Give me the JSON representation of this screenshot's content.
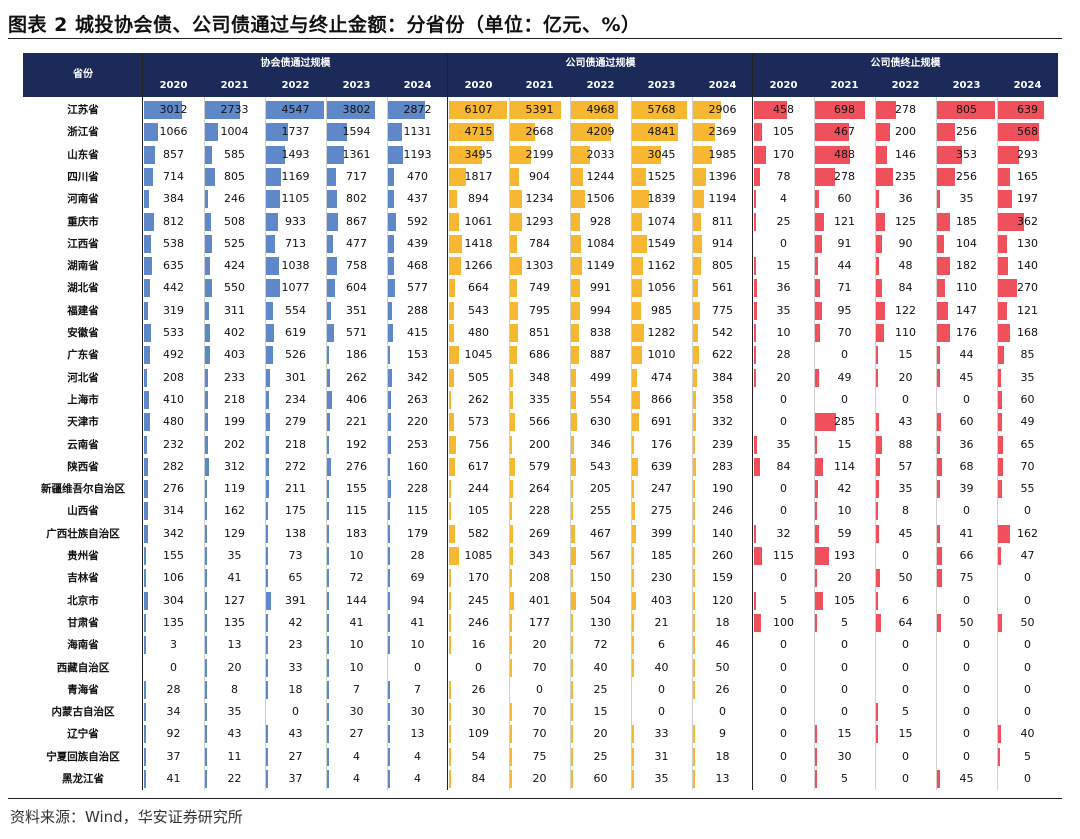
{
  "title": "图表 2  城投协会债、公司债通过与终止金额：分省份（单位：亿元、%）",
  "source": "资料来源：Wind，华安证券研究所",
  "colors": {
    "header_bg": "#1b2a58",
    "blue": "#5e88c7",
    "orange": "#f7b731",
    "red": "#f0505c"
  },
  "chart_data": {
    "type": "table",
    "row_header": "省份",
    "groups": [
      {
        "name": "协会债通过规模",
        "color": "blue",
        "max": 4547
      },
      {
        "name": "公司债通过规模",
        "color": "orange",
        "max": 6107
      },
      {
        "name": "公司债终止规模",
        "color": "red",
        "max": 805
      }
    ],
    "years": [
      "2020",
      "2021",
      "2022",
      "2023",
      "2024"
    ],
    "rows": [
      {
        "province": "江苏省",
        "values": [
          [
            3012,
            2733,
            4547,
            3802,
            2872
          ],
          [
            6107,
            5391,
            4968,
            5768,
            2906
          ],
          [
            458,
            698,
            278,
            805,
            639
          ]
        ]
      },
      {
        "province": "浙江省",
        "values": [
          [
            1066,
            1004,
            1737,
            1594,
            1131
          ],
          [
            4715,
            2668,
            4209,
            4841,
            2369
          ],
          [
            105,
            467,
            200,
            256,
            568
          ]
        ]
      },
      {
        "province": "山东省",
        "values": [
          [
            857,
            585,
            1493,
            1361,
            1193
          ],
          [
            3495,
            2199,
            2033,
            3045,
            1985
          ],
          [
            170,
            488,
            146,
            353,
            293
          ]
        ]
      },
      {
        "province": "四川省",
        "values": [
          [
            714,
            805,
            1169,
            717,
            470
          ],
          [
            1817,
            904,
            1244,
            1525,
            1396
          ],
          [
            78,
            278,
            235,
            256,
            165
          ]
        ]
      },
      {
        "province": "河南省",
        "values": [
          [
            384,
            246,
            1105,
            802,
            437
          ],
          [
            894,
            1234,
            1506,
            1839,
            1194
          ],
          [
            4,
            60,
            36,
            35,
            197
          ]
        ]
      },
      {
        "province": "重庆市",
        "values": [
          [
            812,
            508,
            933,
            867,
            592
          ],
          [
            1061,
            1293,
            928,
            1074,
            811
          ],
          [
            25,
            121,
            125,
            185,
            362
          ]
        ]
      },
      {
        "province": "江西省",
        "values": [
          [
            538,
            525,
            713,
            477,
            439
          ],
          [
            1418,
            784,
            1084,
            1549,
            914
          ],
          [
            0,
            91,
            90,
            104,
            130
          ]
        ]
      },
      {
        "province": "湖南省",
        "values": [
          [
            635,
            424,
            1038,
            758,
            468
          ],
          [
            1266,
            1303,
            1149,
            1162,
            805
          ],
          [
            15,
            44,
            48,
            182,
            140
          ]
        ]
      },
      {
        "province": "湖北省",
        "values": [
          [
            442,
            550,
            1077,
            604,
            577
          ],
          [
            664,
            749,
            991,
            1056,
            561
          ],
          [
            36,
            71,
            84,
            110,
            270
          ]
        ]
      },
      {
        "province": "福建省",
        "values": [
          [
            319,
            311,
            554,
            351,
            288
          ],
          [
            543,
            795,
            994,
            985,
            775
          ],
          [
            35,
            95,
            122,
            147,
            121
          ]
        ]
      },
      {
        "province": "安徽省",
        "values": [
          [
            533,
            402,
            619,
            571,
            415
          ],
          [
            480,
            851,
            838,
            1282,
            542
          ],
          [
            10,
            70,
            110,
            176,
            168
          ]
        ]
      },
      {
        "province": "广东省",
        "values": [
          [
            492,
            403,
            526,
            186,
            153
          ],
          [
            1045,
            686,
            887,
            1010,
            622
          ],
          [
            28,
            0,
            15,
            44,
            85
          ]
        ]
      },
      {
        "province": "河北省",
        "values": [
          [
            208,
            233,
            301,
            262,
            342
          ],
          [
            505,
            348,
            499,
            474,
            384
          ],
          [
            20,
            49,
            20,
            45,
            35
          ]
        ]
      },
      {
        "province": "上海市",
        "values": [
          [
            410,
            218,
            234,
            406,
            263
          ],
          [
            262,
            335,
            554,
            866,
            358
          ],
          [
            0,
            0,
            0,
            0,
            60
          ]
        ]
      },
      {
        "province": "天津市",
        "values": [
          [
            480,
            199,
            279,
            221,
            220
          ],
          [
            573,
            566,
            630,
            691,
            332
          ],
          [
            0,
            285,
            43,
            60,
            49
          ]
        ]
      },
      {
        "province": "云南省",
        "values": [
          [
            232,
            202,
            218,
            192,
            253
          ],
          [
            756,
            200,
            346,
            176,
            239
          ],
          [
            35,
            15,
            88,
            36,
            65
          ]
        ]
      },
      {
        "province": "陕西省",
        "values": [
          [
            282,
            312,
            272,
            276,
            160
          ],
          [
            617,
            579,
            543,
            639,
            283
          ],
          [
            84,
            114,
            57,
            68,
            70
          ]
        ]
      },
      {
        "province": "新疆维吾尔自治区",
        "values": [
          [
            276,
            119,
            211,
            155,
            228
          ],
          [
            244,
            264,
            205,
            247,
            190
          ],
          [
            0,
            42,
            35,
            39,
            55
          ]
        ]
      },
      {
        "province": "山西省",
        "values": [
          [
            314,
            162,
            175,
            115,
            115
          ],
          [
            105,
            228,
            255,
            275,
            246
          ],
          [
            0,
            10,
            8,
            0,
            0
          ]
        ]
      },
      {
        "province": "广西壮族自治区",
        "values": [
          [
            342,
            129,
            138,
            183,
            179
          ],
          [
            582,
            269,
            467,
            399,
            140
          ],
          [
            32,
            59,
            45,
            41,
            162
          ]
        ]
      },
      {
        "province": "贵州省",
        "values": [
          [
            155,
            35,
            73,
            10,
            28
          ],
          [
            1085,
            343,
            567,
            185,
            260
          ],
          [
            115,
            193,
            0,
            66,
            47
          ]
        ]
      },
      {
        "province": "吉林省",
        "values": [
          [
            106,
            41,
            65,
            72,
            69
          ],
          [
            170,
            208,
            150,
            230,
            159
          ],
          [
            0,
            20,
            50,
            75,
            0
          ]
        ]
      },
      {
        "province": "北京市",
        "values": [
          [
            304,
            127,
            391,
            144,
            94
          ],
          [
            245,
            401,
            504,
            403,
            120
          ],
          [
            5,
            105,
            6,
            0,
            0
          ]
        ]
      },
      {
        "province": "甘肃省",
        "values": [
          [
            135,
            135,
            42,
            41,
            41
          ],
          [
            246,
            177,
            130,
            21,
            18
          ],
          [
            100,
            5,
            64,
            50,
            50
          ]
        ]
      },
      {
        "province": "海南省",
        "values": [
          [
            3,
            13,
            23,
            10,
            10
          ],
          [
            16,
            20,
            72,
            6,
            46
          ],
          [
            0,
            0,
            0,
            0,
            0
          ]
        ]
      },
      {
        "province": "西藏自治区",
        "values": [
          [
            0,
            20,
            33,
            10,
            0
          ],
          [
            0,
            70,
            40,
            40,
            50
          ],
          [
            0,
            0,
            0,
            0,
            0
          ]
        ]
      },
      {
        "province": "青海省",
        "values": [
          [
            28,
            8,
            18,
            7,
            7
          ],
          [
            26,
            0,
            25,
            0,
            26
          ],
          [
            0,
            0,
            0,
            0,
            0
          ]
        ]
      },
      {
        "province": "内蒙古自治区",
        "values": [
          [
            34,
            35,
            0,
            30,
            30
          ],
          [
            30,
            70,
            15,
            0,
            0
          ],
          [
            0,
            0,
            5,
            0,
            0
          ]
        ]
      },
      {
        "province": "辽宁省",
        "values": [
          [
            92,
            43,
            43,
            27,
            13
          ],
          [
            109,
            70,
            20,
            33,
            9
          ],
          [
            0,
            15,
            15,
            0,
            40
          ]
        ]
      },
      {
        "province": "宁夏回族自治区",
        "values": [
          [
            37,
            11,
            27,
            4,
            4
          ],
          [
            54,
            75,
            25,
            31,
            18
          ],
          [
            0,
            30,
            0,
            0,
            5
          ]
        ]
      },
      {
        "province": "黑龙江省",
        "values": [
          [
            41,
            22,
            37,
            4,
            4
          ],
          [
            84,
            20,
            60,
            35,
            13
          ],
          [
            0,
            5,
            0,
            45,
            0
          ]
        ]
      }
    ]
  }
}
